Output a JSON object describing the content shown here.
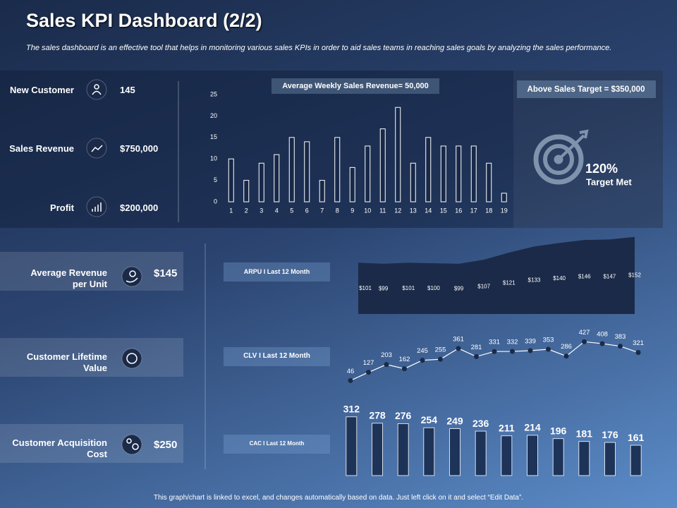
{
  "header": {
    "title": "Sales KPI Dashboard (2/2)",
    "subtitle": "The sales dashboard is an effective tool that helps in monitoring various sales KPIs in order to aid sales teams in reaching sales goals by analyzing the sales performance."
  },
  "kpis": [
    {
      "label": "New Customer",
      "value": "145"
    },
    {
      "label": "Sales Revenue",
      "value": "$750,000"
    },
    {
      "label": "Profit",
      "value": "$200,000"
    }
  ],
  "target": {
    "label": "Above Sales Target = $350,000",
    "value": "120%",
    "caption": "Target Met"
  },
  "unit_metrics": [
    {
      "label": "Average Revenue per Unit",
      "value": "$145"
    },
    {
      "label": "Customer Lifetime Value"
    },
    {
      "label": "Customer Acquisition Cost",
      "value": "$250"
    }
  ],
  "chart_data": [
    {
      "type": "bar",
      "title": "Average Weekly Sales Revenue= 50,000",
      "categories": [
        "1",
        "2",
        "3",
        "4",
        "5",
        "6",
        "7",
        "8",
        "9",
        "10",
        "11",
        "12",
        "13",
        "14",
        "15",
        "16",
        "17",
        "18",
        "19"
      ],
      "values": [
        10,
        5,
        9,
        11,
        15,
        14,
        5,
        15,
        8,
        13,
        17,
        22,
        9,
        15,
        13,
        13,
        13,
        9,
        2
      ],
      "ylim": [
        0,
        25
      ],
      "yticks": [
        0,
        5,
        10,
        15,
        20,
        25
      ],
      "color": "#ffffff"
    },
    {
      "type": "area",
      "title": "ARPU I Last 12 Month",
      "values": [
        101,
        99,
        101,
        100,
        99,
        107,
        121,
        133,
        140,
        146,
        147,
        152
      ],
      "value_labels": [
        "$101",
        "$99",
        "$101",
        "$100",
        "$99",
        "$107",
        "$121",
        "$133",
        "$140",
        "$146",
        "$147",
        "$152"
      ],
      "ylim": [
        0,
        160
      ],
      "color": "#1b2a48"
    },
    {
      "type": "line",
      "title": "CLV I Last 12 Month",
      "values": [
        46,
        127,
        203,
        162,
        245,
        255,
        361,
        281,
        331,
        332,
        339,
        353,
        286,
        427,
        408,
        383,
        321
      ],
      "ylim": [
        0,
        450
      ],
      "color": "#ffffff"
    },
    {
      "type": "bar",
      "title": "CAC I Last 12 Month",
      "values": [
        312,
        278,
        276,
        254,
        249,
        236,
        211,
        214,
        196,
        181,
        176,
        161
      ],
      "ylim": [
        0,
        330
      ],
      "color": "#1e3358"
    }
  ],
  "footer": "This graph/chart is linked to excel, and changes automatically based on data. Just left click on it and select “Edit Data”."
}
